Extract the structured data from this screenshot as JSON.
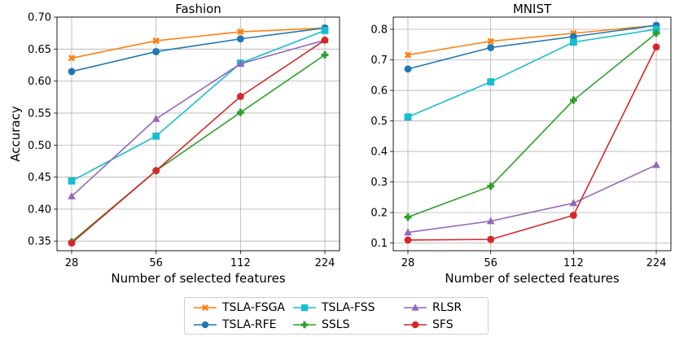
{
  "chart_data": [
    {
      "type": "line",
      "title": "Fashion",
      "xlabel": "Number of selected features",
      "ylabel": "Accuracy",
      "categories": [
        "28",
        "56",
        "112",
        "224"
      ],
      "ylim": [
        0.335,
        0.7
      ],
      "yticks": [
        "0.35",
        "0.40",
        "0.45",
        "0.50",
        "0.55",
        "0.60",
        "0.65",
        "0.70"
      ],
      "grid": true,
      "series": [
        {
          "name": "TSLA-FSGA",
          "color": "#ff7f0e",
          "marker": "x",
          "values": [
            0.636,
            0.663,
            0.677,
            0.683
          ]
        },
        {
          "name": "TSLA-RFE",
          "color": "#1f77b4",
          "marker": "o",
          "values": [
            0.615,
            0.646,
            0.666,
            0.683
          ]
        },
        {
          "name": "TSLA-FSS",
          "color": "#17becf",
          "marker": "s",
          "values": [
            0.444,
            0.514,
            0.628,
            0.679
          ]
        },
        {
          "name": "SSLS",
          "color": "#2ca02c",
          "marker": "P",
          "values": [
            0.349,
            0.46,
            0.551,
            0.641
          ]
        },
        {
          "name": "RLSR",
          "color": "#9467bd",
          "marker": "^",
          "values": [
            0.42,
            0.541,
            0.627,
            0.664
          ]
        },
        {
          "name": "SFS",
          "color": "#d62728",
          "marker": "o",
          "values": [
            0.347,
            0.46,
            0.576,
            0.664
          ]
        }
      ]
    },
    {
      "type": "line",
      "title": "MNIST",
      "xlabel": "Number of selected features",
      "ylabel": "",
      "categories": [
        "28",
        "56",
        "112",
        "224"
      ],
      "ylim": [
        0.075,
        0.84
      ],
      "yticks": [
        "0.1",
        "0.2",
        "0.3",
        "0.4",
        "0.5",
        "0.6",
        "0.7",
        "0.8"
      ],
      "grid": true,
      "series": [
        {
          "name": "TSLA-FSGA",
          "color": "#ff7f0e",
          "marker": "x",
          "values": [
            0.716,
            0.761,
            0.787,
            0.813
          ]
        },
        {
          "name": "TSLA-RFE",
          "color": "#1f77b4",
          "marker": "o",
          "values": [
            0.67,
            0.74,
            0.776,
            0.813
          ]
        },
        {
          "name": "TSLA-FSS",
          "color": "#17becf",
          "marker": "s",
          "values": [
            0.513,
            0.628,
            0.758,
            0.8
          ]
        },
        {
          "name": "SSLS",
          "color": "#2ca02c",
          "marker": "P",
          "values": [
            0.185,
            0.286,
            0.568,
            0.787
          ]
        },
        {
          "name": "RLSR",
          "color": "#9467bd",
          "marker": "^",
          "values": [
            0.135,
            0.172,
            0.231,
            0.356
          ]
        },
        {
          "name": "SFS",
          "color": "#d62728",
          "marker": "o",
          "values": [
            0.11,
            0.112,
            0.191,
            0.742
          ]
        }
      ]
    }
  ],
  "legend": {
    "placement": "bottom-center",
    "entries": [
      "TSLA-FSGA",
      "TSLA-FSS",
      "RLSR",
      "TSLA-RFE",
      "SSLS",
      "SFS"
    ]
  }
}
